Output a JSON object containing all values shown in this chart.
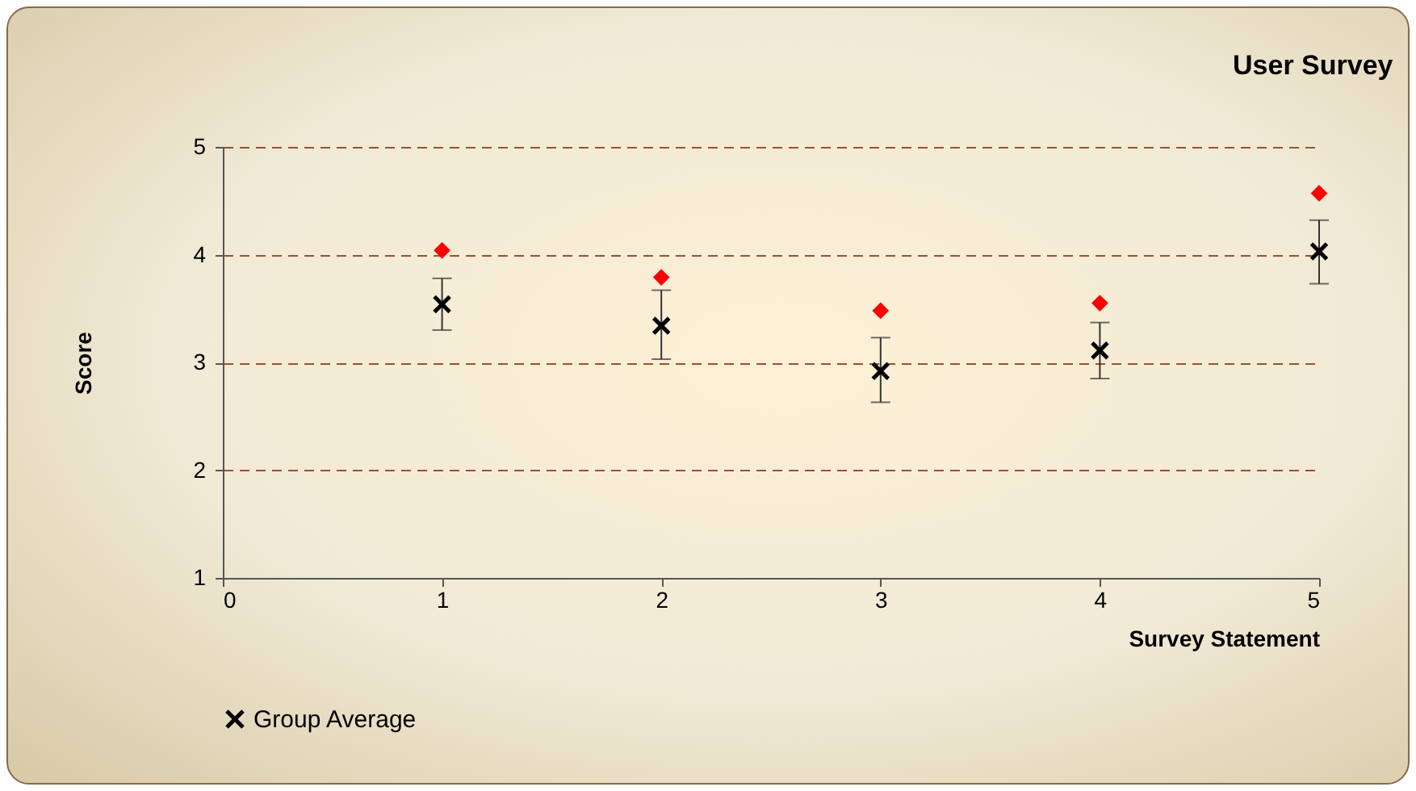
{
  "chart_data": {
    "type": "scatter",
    "title": "User Survey",
    "xlabel": "Survey Statement",
    "ylabel": "Score",
    "x": [
      1,
      2,
      3,
      4,
      5
    ],
    "series": [
      {
        "name": "Group Average",
        "color": "#000000",
        "marker": "cross",
        "values": [
          3.54,
          3.34,
          2.92,
          3.11,
          4.03
        ],
        "errors": [
          [
            3.3,
            3.78
          ],
          [
            3.03,
            3.67
          ],
          [
            2.63,
            3.23
          ],
          [
            2.85,
            3.37
          ],
          [
            3.73,
            4.32
          ]
        ]
      },
      {
        "color": "#ff0000",
        "marker": "diamond",
        "values": [
          4.04,
          3.79,
          3.48,
          3.55,
          4.57
        ]
      }
    ],
    "xlim": [
      0,
      5
    ],
    "xticks": [
      0,
      1,
      2,
      3,
      4,
      5
    ],
    "ylim": [
      1,
      5
    ],
    "yticks": [
      1,
      2,
      3,
      4,
      5
    ],
    "grid": "y",
    "legend": "bottom"
  }
}
